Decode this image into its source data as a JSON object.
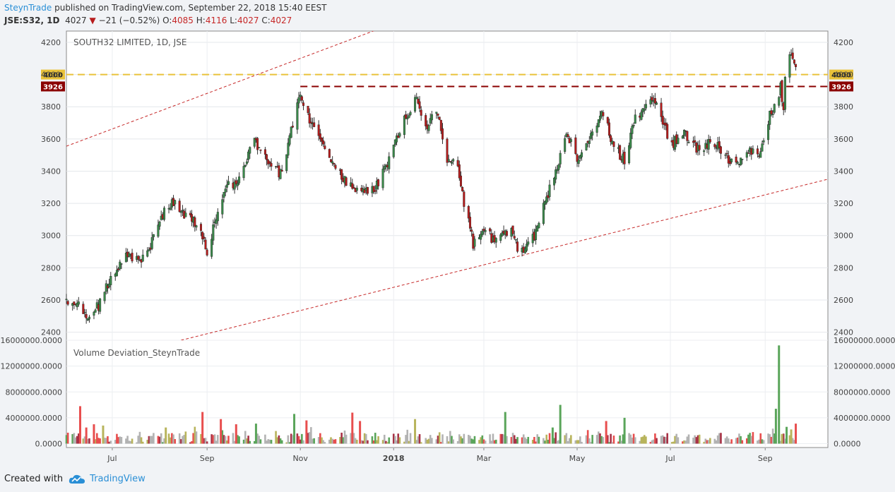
{
  "header": {
    "author": "SteynTrade",
    "published_text": "published on TradingView.com, September 22, 2018 15:40 EEST",
    "symbol": "JSE:S32, 1D",
    "last": "4027",
    "change_arrow": "▼",
    "change": "−21 (−0.52%)",
    "o_label": "O:",
    "o_value": "4085",
    "h_label": "H:",
    "h_value": "4116",
    "l_label": "L:",
    "l_value": "4027",
    "c_label": "C:",
    "c_value": "4027"
  },
  "footer": {
    "created_with": "Created with",
    "brand": "TradingView",
    "logo_icon": "tradingview-cloud-icon"
  },
  "colors": {
    "up": "#3a8a4a",
    "down": "#b71c1c",
    "level_4000": "#e9c23a",
    "level_3926": "#8b0000",
    "channel": "#c62828",
    "vol_green": "#5aa55a",
    "vol_red": "#e84e4e",
    "vol_olive": "#b8b45c",
    "vol_gray": "#b3b3b3",
    "vol_maroon": "#a83246"
  },
  "chart_data": [
    {
      "type": "candlestick",
      "title": "SOUTH32 LIMITED, 1D, JSE",
      "ylim": [
        2350,
        4270
      ],
      "yticks": [
        2400,
        2600,
        2800,
        3000,
        3200,
        3400,
        3600,
        3800,
        4000,
        4200
      ],
      "xlim": [
        "2017-06-01",
        "2018-10-12"
      ],
      "x_tick_labels": [
        {
          "date": "2017-07-01",
          "label": "Jul"
        },
        {
          "date": "2017-09-01",
          "label": "Sep"
        },
        {
          "date": "2017-11-01",
          "label": "Nov"
        },
        {
          "date": "2018-01-01",
          "label": "2018"
        },
        {
          "date": "2018-03-01",
          "label": "Mar"
        },
        {
          "date": "2018-05-01",
          "label": "May"
        },
        {
          "date": "2018-07-01",
          "label": "Jul"
        },
        {
          "date": "2018-09-01",
          "label": "Sep"
        }
      ],
      "horizontal_levels": [
        {
          "value": 4000,
          "label": "4000",
          "style": "dashed"
        },
        {
          "value": 3926,
          "label": "3926",
          "style": "dashed"
        }
      ],
      "trend_lines": [
        {
          "points": [
            [
              "2017-06-01",
              3555
            ],
            [
              "2018-03-10",
              4560
            ]
          ]
        },
        {
          "points": [
            [
              "2017-08-15",
              2350
            ],
            [
              "2018-10-12",
              3350
            ]
          ]
        }
      ],
      "close_path": [
        [
          "2017-06-01",
          2600
        ],
        [
          "2017-06-08",
          2580
        ],
        [
          "2017-06-15",
          2490
        ],
        [
          "2017-06-22",
          2560
        ],
        [
          "2017-07-01",
          2760
        ],
        [
          "2017-07-10",
          2870
        ],
        [
          "2017-07-20",
          2860
        ],
        [
          "2017-07-27",
          2960
        ],
        [
          "2017-08-03",
          3130
        ],
        [
          "2017-08-10",
          3210
        ],
        [
          "2017-08-17",
          3120
        ],
        [
          "2017-08-25",
          3080
        ],
        [
          "2017-09-01",
          2900
        ],
        [
          "2017-09-05",
          3050
        ],
        [
          "2017-09-12",
          3280
        ],
        [
          "2017-09-22",
          3360
        ],
        [
          "2017-10-01",
          3600
        ],
        [
          "2017-10-12",
          3420
        ],
        [
          "2017-10-20",
          3380
        ],
        [
          "2017-10-25",
          3600
        ],
        [
          "2017-11-01",
          3880
        ],
        [
          "2017-11-08",
          3700
        ],
        [
          "2017-11-15",
          3550
        ],
        [
          "2017-11-22",
          3480
        ],
        [
          "2017-12-01",
          3330
        ],
        [
          "2017-12-10",
          3280
        ],
        [
          "2017-12-20",
          3300
        ],
        [
          "2017-12-28",
          3450
        ],
        [
          "2018-01-05",
          3650
        ],
        [
          "2018-01-15",
          3860
        ],
        [
          "2018-01-22",
          3680
        ],
        [
          "2018-01-29",
          3800
        ],
        [
          "2018-02-05",
          3480
        ],
        [
          "2018-02-12",
          3450
        ],
        [
          "2018-02-16",
          3200
        ],
        [
          "2018-02-22",
          2950
        ],
        [
          "2018-03-01",
          3020
        ],
        [
          "2018-03-10",
          2960
        ],
        [
          "2018-03-18",
          3050
        ],
        [
          "2018-03-25",
          2880
        ],
        [
          "2018-04-03",
          3000
        ],
        [
          "2018-04-10",
          3200
        ],
        [
          "2018-04-17",
          3400
        ],
        [
          "2018-04-24",
          3650
        ],
        [
          "2018-05-01",
          3450
        ],
        [
          "2018-05-10",
          3640
        ],
        [
          "2018-05-18",
          3760
        ],
        [
          "2018-05-25",
          3550
        ],
        [
          "2018-06-01",
          3470
        ],
        [
          "2018-06-08",
          3730
        ],
        [
          "2018-06-16",
          3820
        ],
        [
          "2018-06-23",
          3800
        ],
        [
          "2018-07-01",
          3560
        ],
        [
          "2018-07-10",
          3640
        ],
        [
          "2018-07-20",
          3520
        ],
        [
          "2018-07-28",
          3580
        ],
        [
          "2018-08-05",
          3520
        ],
        [
          "2018-08-12",
          3420
        ],
        [
          "2018-08-20",
          3550
        ],
        [
          "2018-08-28",
          3500
        ],
        [
          "2018-09-03",
          3720
        ],
        [
          "2018-09-07",
          3800
        ],
        [
          "2018-09-11",
          3920
        ],
        [
          "2018-09-13",
          3760
        ],
        [
          "2018-09-15",
          4150
        ],
        [
          "2018-09-18",
          4120
        ],
        [
          "2018-09-21",
          4027
        ]
      ]
    },
    {
      "type": "bar",
      "title": "Volume Deviation_SteynTrade",
      "ylim": [
        -600000,
        16000000
      ],
      "yticks": [
        0,
        4000000,
        8000000,
        12000000,
        16000000
      ],
      "ytick_labels": [
        "0.0000",
        "4000000.0000",
        "8000000.0000",
        "12000000.0000",
        "16000000.0000"
      ],
      "notable_bars": [
        {
          "date": "2017-06-10",
          "value": 5800000,
          "color": "red"
        },
        {
          "date": "2017-06-14",
          "value": 2500000,
          "color": "red"
        },
        {
          "date": "2017-06-19",
          "value": 3000000,
          "color": "red"
        },
        {
          "date": "2017-06-25",
          "value": 2800000,
          "color": "olive"
        },
        {
          "date": "2017-08-05",
          "value": 2500000,
          "color": "olive"
        },
        {
          "date": "2017-08-29",
          "value": 4900000,
          "color": "red"
        },
        {
          "date": "2017-09-10",
          "value": 3800000,
          "color": "red"
        },
        {
          "date": "2017-09-20",
          "value": 3000000,
          "color": "red"
        },
        {
          "date": "2017-10-03",
          "value": 3100000,
          "color": "green"
        },
        {
          "date": "2017-10-28",
          "value": 4600000,
          "color": "green"
        },
        {
          "date": "2017-11-05",
          "value": 3600000,
          "color": "red"
        },
        {
          "date": "2017-12-05",
          "value": 4800000,
          "color": "red"
        },
        {
          "date": "2017-12-10",
          "value": 3500000,
          "color": "red"
        },
        {
          "date": "2018-01-15",
          "value": 3800000,
          "color": "olive"
        },
        {
          "date": "2018-03-15",
          "value": 4900000,
          "color": "green"
        },
        {
          "date": "2018-04-15",
          "value": 2500000,
          "color": "green"
        },
        {
          "date": "2018-04-20",
          "value": 6000000,
          "color": "green"
        },
        {
          "date": "2018-05-20",
          "value": 3500000,
          "color": "red"
        },
        {
          "date": "2018-06-01",
          "value": 4000000,
          "color": "green"
        },
        {
          "date": "2018-09-08",
          "value": 5400000,
          "color": "green"
        },
        {
          "date": "2018-09-10",
          "value": 15200000,
          "color": "green"
        },
        {
          "date": "2018-09-12",
          "value": 1500000,
          "color": "olive"
        },
        {
          "date": "2018-09-15",
          "value": 2600000,
          "color": "green"
        },
        {
          "date": "2018-09-18",
          "value": 2200000,
          "color": "olive"
        },
        {
          "date": "2018-09-21",
          "value": 3100000,
          "color": "red"
        }
      ]
    }
  ]
}
